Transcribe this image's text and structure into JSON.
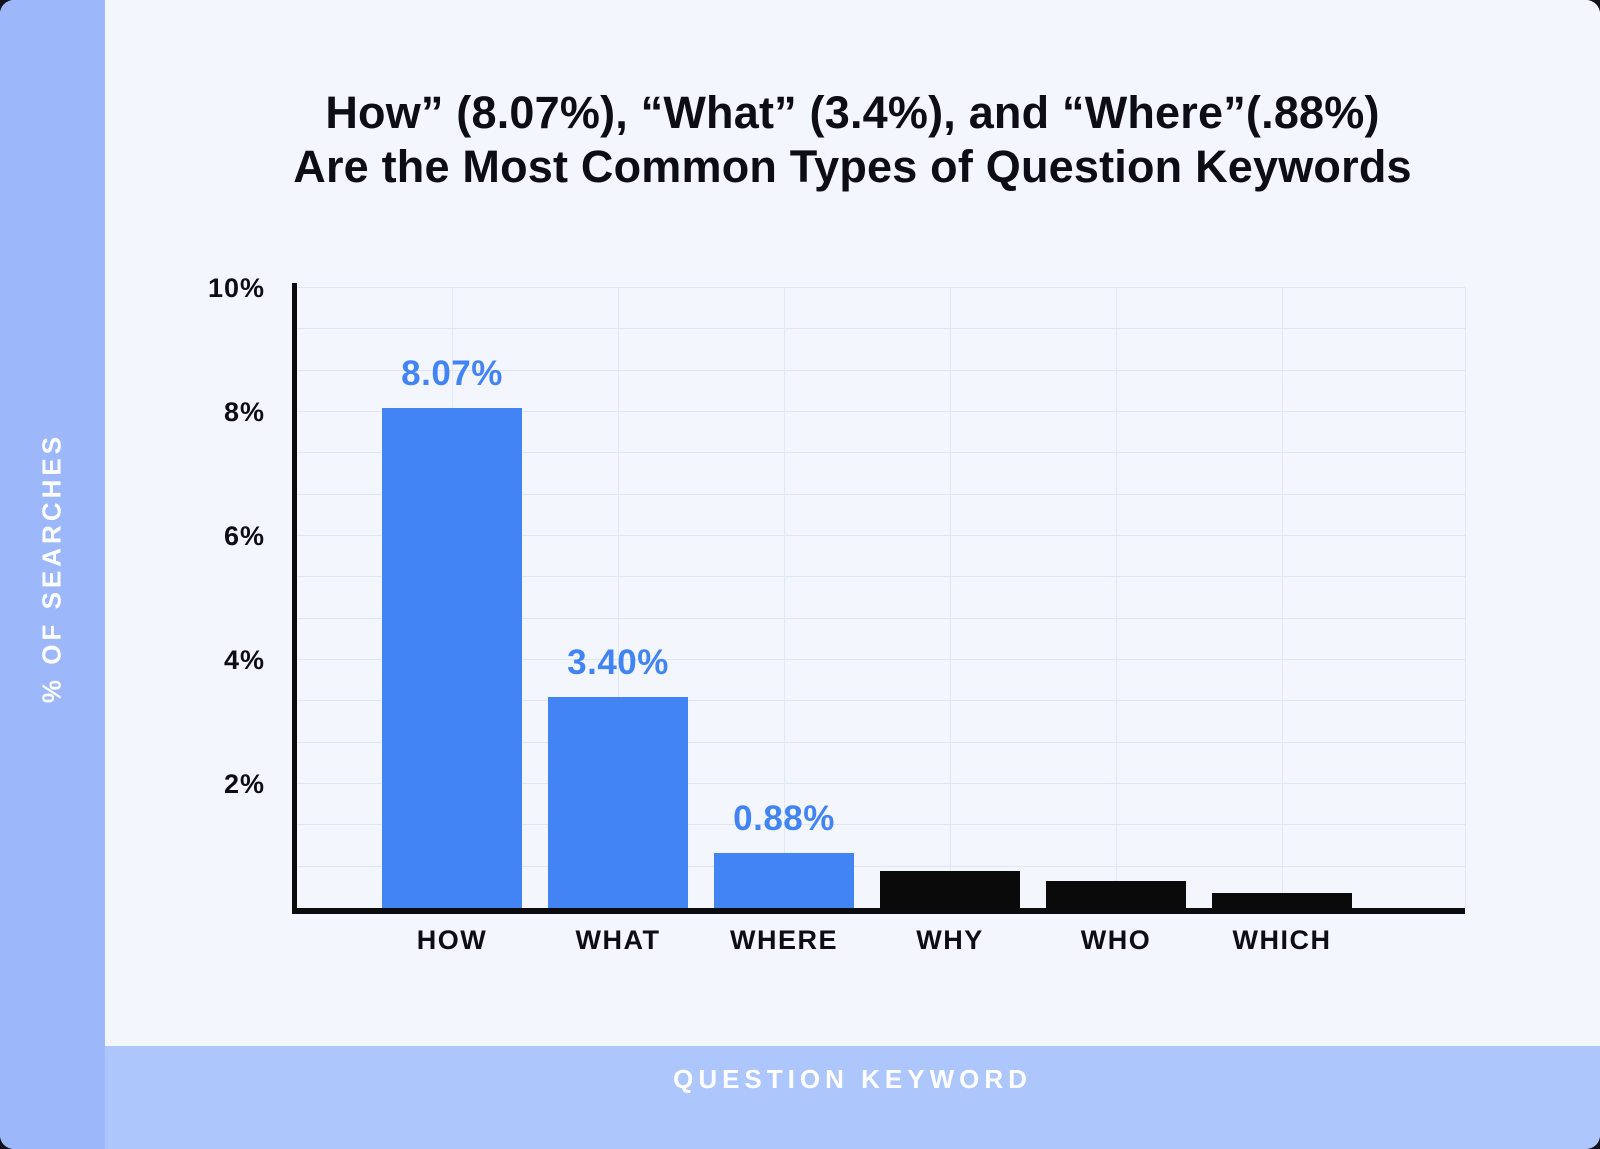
{
  "page": {
    "outer_bg": "#12121e",
    "card_bg": "#f3f6fd",
    "sidebar_bg": "#9cb8fb",
    "footer_bg": "#adc6fb",
    "accent_blue": "#4384f4",
    "bar_black": "#0a0a0a"
  },
  "title": {
    "line1": "How” (8.07%), “What” (3.4%), and “Where”(.88%)",
    "line2": "Are the Most Common Types of Question Keywords"
  },
  "y_axis": {
    "label": "% OF SEARCHES",
    "tick_labels": [
      "10%",
      "8%",
      "6%",
      "4%",
      "2%"
    ]
  },
  "x_axis": {
    "label": "QUESTION KEYWORD"
  },
  "chart_data": {
    "type": "bar",
    "title": "How” (8.07%), “What” (3.4%), and “Where”(.88%) Are the Most Common Types of Question Keywords",
    "xlabel": "QUESTION KEYWORD",
    "ylabel": "% OF SEARCHES",
    "categories": [
      "HOW",
      "WHAT",
      "WHERE",
      "WHY",
      "WHO",
      "WHICH"
    ],
    "values": [
      8.07,
      3.4,
      0.88,
      0.6,
      0.44,
      0.24
    ],
    "bar_labels": [
      "8.07%",
      "3.40%",
      "0.88%",
      null,
      null,
      null
    ],
    "bar_colors": [
      "#4384f4",
      "#4384f4",
      "#4384f4",
      "#0a0a0a",
      "#0a0a0a",
      "#0a0a0a"
    ],
    "ylim": [
      0,
      10
    ],
    "y_ticks_percent": [
      10,
      8,
      6,
      4,
      2
    ],
    "grid": true,
    "legend": false
  }
}
